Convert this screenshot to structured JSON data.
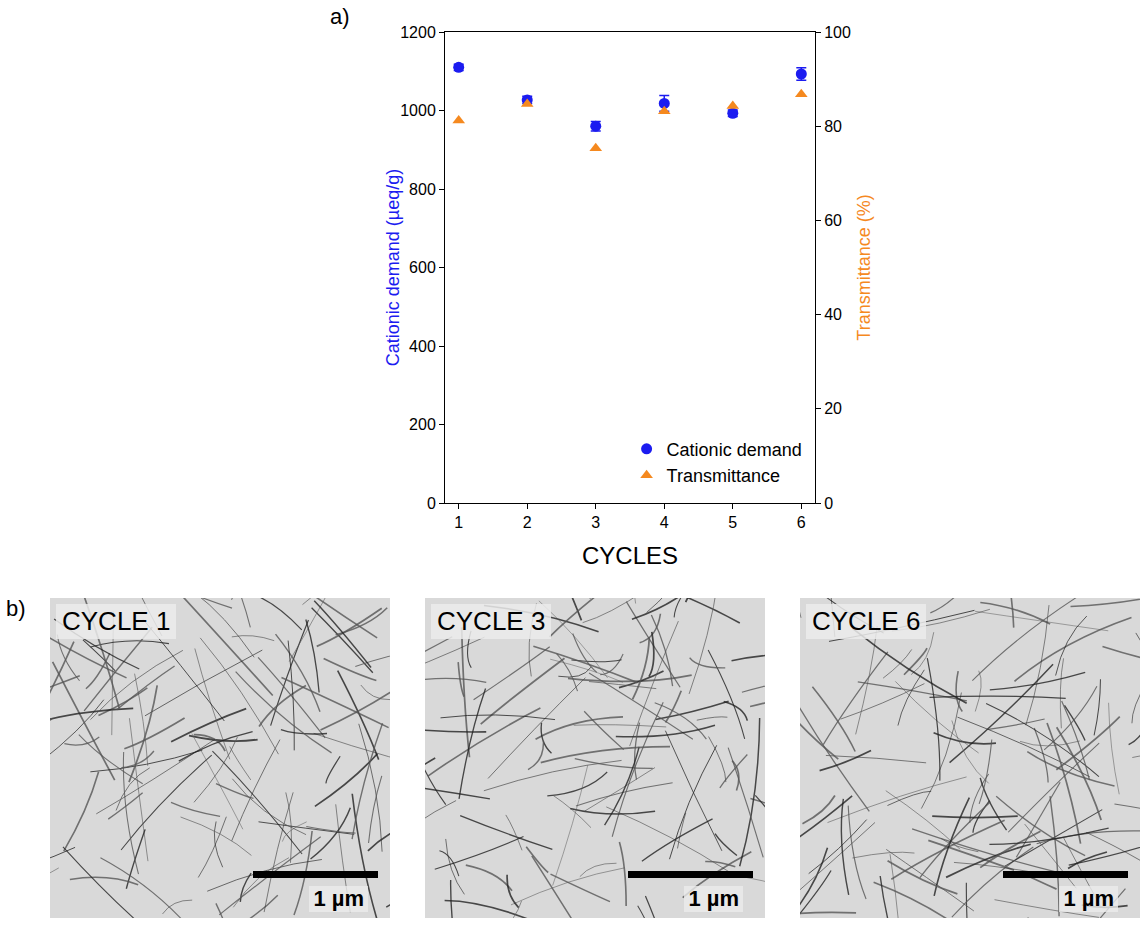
{
  "chart_data": {
    "type": "scatter",
    "panel": "a)",
    "x_label": "CYCLES",
    "y_label": "Cationic demand (µeq/g)",
    "y2_label": "Transmittance (%)",
    "x": [
      1,
      2,
      3,
      4,
      5,
      6
    ],
    "series": [
      {
        "name": "Cationic demand",
        "color": "#1c1cf0",
        "marker": "circle",
        "values": [
          1110,
          1027,
          960,
          1018,
          993,
          1093
        ],
        "errors": [
          8,
          9,
          12,
          20,
          8,
          16
        ]
      },
      {
        "name": "Transmittance",
        "color": "#f5891f",
        "marker": "triangle-up",
        "axis": "y2",
        "values": [
          81.2,
          84.7,
          75.3,
          83.2,
          84.3,
          86.8
        ]
      }
    ],
    "xlim": [
      0.8,
      6.2
    ],
    "xticks": [
      1,
      2,
      3,
      4,
      5,
      6
    ],
    "ylim": [
      0,
      1200
    ],
    "yticks": [
      0,
      200,
      400,
      600,
      800,
      1000,
      1200
    ],
    "y2lim": [
      0,
      100
    ],
    "y2ticks": [
      0,
      20,
      40,
      60,
      80,
      100
    ],
    "legend": "lower right",
    "grid": false
  },
  "micrographs": {
    "panel": "b)",
    "images": [
      {
        "label": "CYCLE 1",
        "scale_bar": "1 µm"
      },
      {
        "label": "CYCLE 3",
        "scale_bar": "1 µm"
      },
      {
        "label": "CYCLE 6",
        "scale_bar": "1 µm"
      }
    ]
  }
}
